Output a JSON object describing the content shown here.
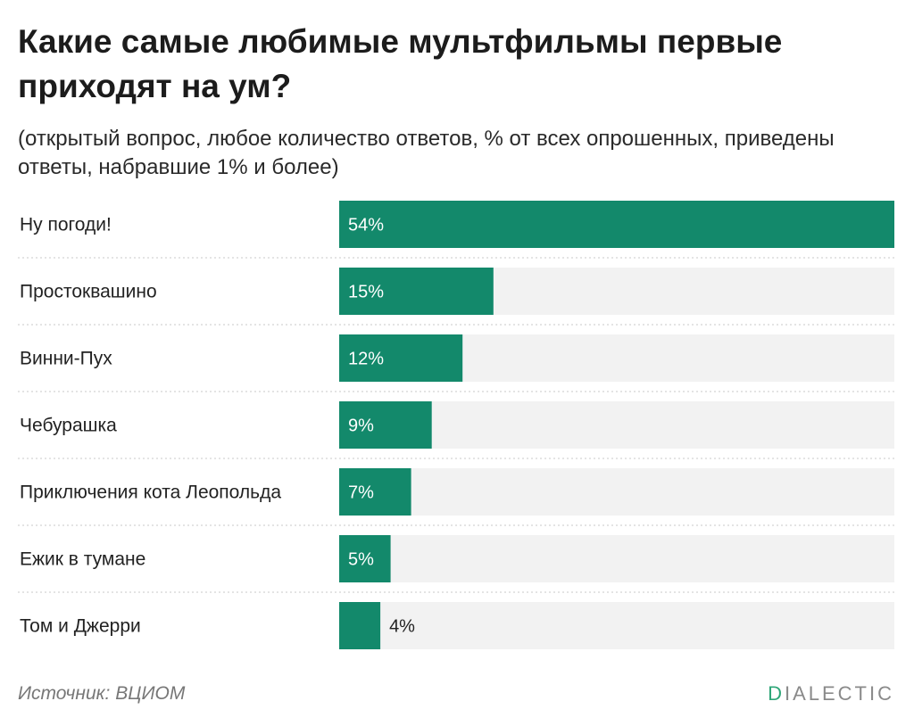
{
  "header": {
    "title": "Какие самые любимые мультфильмы первые приходят на ум?",
    "subtitle": "(открытый вопрос, любое количество ответов, % от всех опрошенных, приведены ответы, набравшие 1% и более)"
  },
  "chart_data": {
    "type": "bar",
    "orientation": "horizontal",
    "title": "Какие самые любимые мультфильмы первые приходят на ум?",
    "subtitle": "(открытый вопрос, любое количество ответов, % от всех опрошенных, приведены ответы, набравшие 1% и более)",
    "categories": [
      "Ну погоди!",
      "Простоквашино",
      "Винни-Пух",
      "Чебурашка",
      "Приключения кота Леопольда",
      "Ежик в тумане",
      "Том и Джерри"
    ],
    "values": [
      54,
      15,
      12,
      9,
      7,
      5,
      4
    ],
    "value_labels": [
      "54%",
      "15%",
      "12%",
      "9%",
      "7%",
      "5%",
      "4%"
    ],
    "xlim": [
      0,
      54
    ],
    "grid": false,
    "colors": {
      "bar": "#13896b",
      "track": "#f2f2f2",
      "separator": "#c8c8c8",
      "label_inside": "#ffffff",
      "label_outside": "#222222"
    }
  },
  "footer": {
    "source": "Источник: ВЦИОМ",
    "brand_accent": "D",
    "brand_rest": "IALECTIC"
  }
}
